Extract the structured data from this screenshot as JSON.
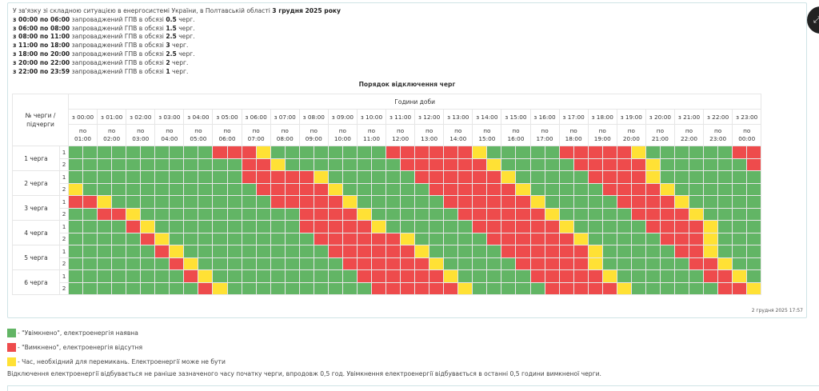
{
  "intro": {
    "heading_text": "У зв'язку зі складною ситуацією в енергосистемі України, в Полтавській області ",
    "heading_date": "3 грудня 2025 року",
    "schedule": [
      {
        "period": "з 00:00 по 06:00",
        "text": " запроваджений ГПВ в обсязі ",
        "amount": "0.5",
        "unit": " черг."
      },
      {
        "period": "з 06:00 по 08:00",
        "text": " запроваджений ГПВ в обсязі ",
        "amount": "1.5",
        "unit": " черг."
      },
      {
        "period": "з 08:00 по 11:00",
        "text": " запроваджений ГПВ в обсязі ",
        "amount": "2.5",
        "unit": " черг."
      },
      {
        "period": "з 11:00 по 18:00",
        "text": " запроваджений ГПВ в обсязі ",
        "amount": "3",
        "unit": " черг."
      },
      {
        "period": "з 18:00 по 20:00",
        "text": " запроваджений ГПВ в обсязі ",
        "amount": "2.5",
        "unit": " черг."
      },
      {
        "period": "з 20:00 по 22:00",
        "text": " запроваджений ГПВ в обсязі ",
        "amount": "2",
        "unit": " черг."
      },
      {
        "period": "з 22:00 по 23:59",
        "text": " запроваджений ГПВ в обсязі ",
        "amount": "1",
        "unit": " черг."
      }
    ]
  },
  "table": {
    "title": "Порядок відключення черг",
    "queue_header": "№ черги / підчерги",
    "hours_header": "Години доби",
    "hour_from": [
      "з 00:00",
      "з 01:00",
      "з 02:00",
      "з 03:00",
      "з 04:00",
      "з 05:00",
      "з 06:00",
      "з 07:00",
      "з 08:00",
      "з 09:00",
      "з 10:00",
      "з 11:00",
      "з 12:00",
      "з 13:00",
      "з 14:00",
      "з 15:00",
      "з 16:00",
      "з 17:00",
      "з 18:00",
      "з 19:00",
      "з 20:00",
      "з 21:00",
      "з 22:00",
      "з 23:00"
    ],
    "hour_to": [
      "по 01:00",
      "по 02:00",
      "по 03:00",
      "по 04:00",
      "по 05:00",
      "по 06:00",
      "по 07:00",
      "по 08:00",
      "по 09:00",
      "по 10:00",
      "по 11:00",
      "по 12:00",
      "по 13:00",
      "по 14:00",
      "по 15:00",
      "по 16:00",
      "по 17:00",
      "по 18:00",
      "по 19:00",
      "по 20:00",
      "по 21:00",
      "по 22:00",
      "по 23:00",
      "по 00:00"
    ],
    "status_colors": {
      "G": "#62b565",
      "R": "#ee4b4c",
      "Y": "#ffe135"
    },
    "queues": [
      {
        "label": "1 черга",
        "subqueues": [
          {
            "label": "1",
            "slots": "GGGGGGGGGGRRRYGGGGGGGGRRRRRRYGGGGGRRRRRYGGGGGGRR"
          },
          {
            "label": "2",
            "slots": "GGGGGGGGGGGGRRYGGGGGGGGRRRRRRYGGGGGRRRRRYGGGGGGR"
          }
        ]
      },
      {
        "label": "2 черга",
        "subqueues": [
          {
            "label": "1",
            "slots": "GGGGGGGGGGGGRRRRRYGGGGGGRRRRRRYGGGGGRRRRYGGGGGGG"
          },
          {
            "label": "2",
            "slots": "YGGGGGGGGGGGGRRRRRYGGGGGGRRRRRRYGGGGGRRRRYGGGGGG"
          }
        ]
      },
      {
        "label": "3 черга",
        "subqueues": [
          {
            "label": "1",
            "slots": "RRYGGGGGGGGGGGRRRRRYGGGGGGRRRRRRYGGGGGRRRRYGGGGG"
          },
          {
            "label": "2",
            "slots": "GGRRYGGGGGGGGGGGRRRRYGGGGGGRRRRRRYGGGGGRRRRYGGGG"
          }
        ]
      },
      {
        "label": "4 черга",
        "subqueues": [
          {
            "label": "1",
            "slots": "GGGGRYGGGGGGGGGGRRRRRYGGGGGGRRRRRRYGGGGGRRRRYGGG"
          },
          {
            "label": "2",
            "slots": "GGGGGRYGGGGGGGGGGRRRRRRYGGGGGRRRRRRYGGGGGRRRYGGG"
          }
        ]
      },
      {
        "label": "5 черга",
        "subqueues": [
          {
            "label": "1",
            "slots": "GGGGGGRYGGGGGGGGGGRRRRRRYGGGGGRRRRRRYGGGGGRRYGGG"
          },
          {
            "label": "2",
            "slots": "GGGGGGGRYGGGGGGGGGGRRRRRRYGGGGGRRRRRYGGGGGGRRYGG"
          }
        ]
      },
      {
        "label": "6 черга",
        "subqueues": [
          {
            "label": "1",
            "slots": "GGGGGGGGRYGGGGGGGGGGRRRRRRYGGGGGRRRRRYGGGGGGRRYG"
          },
          {
            "label": "2",
            "slots": "GGGGGGGGGRYGGGGGGGGGGRRRRRRYGGGGGRRRRRYGGGGGGRRY"
          }
        ]
      }
    ],
    "updated": "2 грудня 2025 17:57"
  },
  "legend": [
    {
      "key": "G",
      "color": "#62b565",
      "text": "- \"Увімкнено\", електроенергія наявна"
    },
    {
      "key": "R",
      "color": "#ee4b4c",
      "text": "- \"Вимкнено\", електроенергія відсутня"
    },
    {
      "key": "Y",
      "color": "#ffe135",
      "text": "- Час, необхідний для перемикань. Електроенергії може не бути"
    }
  ],
  "note": "Відключення електроенергії відбувається не раніше зазначеного часу початку черги, впродовж 0,5 год. Увімкнення електроенергії відбувається в останні 0,5 години вимкненої черги.",
  "corner_button": {
    "icon": "expand-icon"
  }
}
